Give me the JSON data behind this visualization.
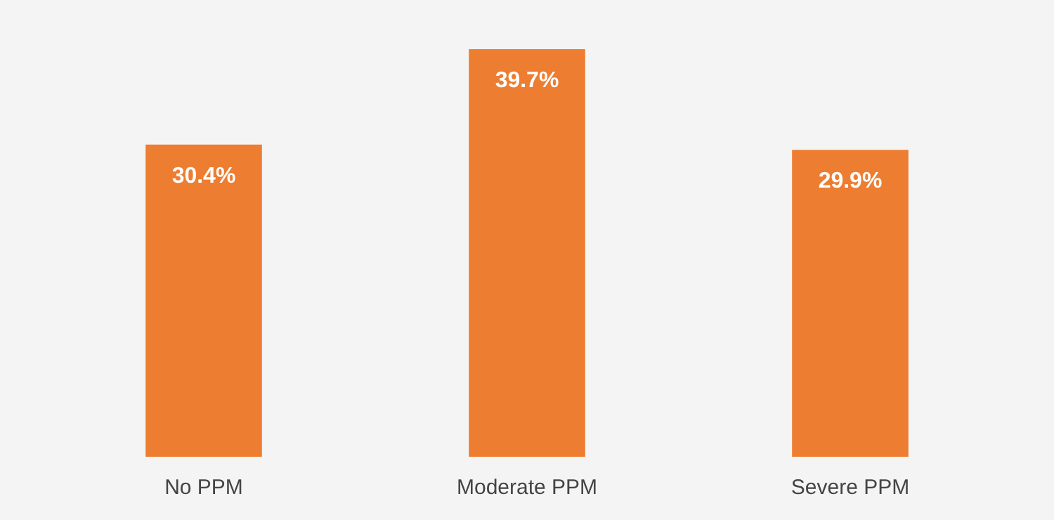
{
  "chart_data": {
    "type": "bar",
    "categories": [
      "No PPM",
      "Moderate PPM",
      "Severe PPM"
    ],
    "values": [
      30.4,
      39.7,
      29.9
    ],
    "value_labels": [
      "30.4%",
      "39.7%",
      "29.9%"
    ],
    "color": "#ed7d31"
  }
}
